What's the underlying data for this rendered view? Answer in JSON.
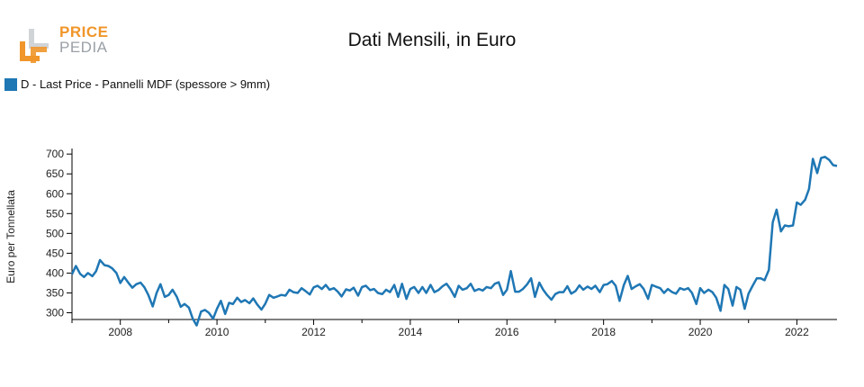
{
  "logo": {
    "line1": "PRICE",
    "line2": "PEDIA"
  },
  "colors": {
    "series": "#1f77b4",
    "logo_orange": "#f0962a",
    "logo_gray": "#9aa0a6",
    "axis": "#000000"
  },
  "chart_data": {
    "type": "line",
    "title": "Dati Mensili, in Euro",
    "ylabel": "Euro per Tonnellata",
    "xlabel": "",
    "xlim": [
      2007.0,
      2022.83
    ],
    "ylim": [
      283,
      714
    ],
    "yticks": [
      300,
      350,
      400,
      450,
      500,
      550,
      600,
      650,
      700
    ],
    "xticks": [
      2008,
      2010,
      2012,
      2014,
      2016,
      2018,
      2020,
      2022
    ],
    "grid": false,
    "legend": "top-left",
    "series": [
      {
        "name": "D - Last Price - Pannelli MDF (spessore > 9mm)",
        "color": "#1f77b4",
        "x": [
          2007.0,
          2007.08,
          2007.17,
          2007.25,
          2007.33,
          2007.42,
          2007.5,
          2007.58,
          2007.67,
          2007.75,
          2007.83,
          2007.92,
          2008.0,
          2008.08,
          2008.17,
          2008.25,
          2008.33,
          2008.42,
          2008.5,
          2008.58,
          2008.67,
          2008.75,
          2008.83,
          2008.92,
          2009.0,
          2009.08,
          2009.17,
          2009.25,
          2009.33,
          2009.42,
          2009.5,
          2009.58,
          2009.67,
          2009.75,
          2009.83,
          2009.92,
          2010.0,
          2010.08,
          2010.17,
          2010.25,
          2010.33,
          2010.42,
          2010.5,
          2010.58,
          2010.67,
          2010.75,
          2010.83,
          2010.92,
          2011.0,
          2011.08,
          2011.17,
          2011.25,
          2011.33,
          2011.42,
          2011.5,
          2011.58,
          2011.67,
          2011.75,
          2011.83,
          2011.92,
          2012.0,
          2012.08,
          2012.17,
          2012.25,
          2012.33,
          2012.42,
          2012.5,
          2012.58,
          2012.67,
          2012.75,
          2012.83,
          2012.92,
          2013.0,
          2013.08,
          2013.17,
          2013.25,
          2013.33,
          2013.42,
          2013.5,
          2013.58,
          2013.67,
          2013.75,
          2013.83,
          2013.92,
          2014.0,
          2014.08,
          2014.17,
          2014.25,
          2014.33,
          2014.42,
          2014.5,
          2014.58,
          2014.67,
          2014.75,
          2014.83,
          2014.92,
          2015.0,
          2015.08,
          2015.17,
          2015.25,
          2015.33,
          2015.42,
          2015.5,
          2015.58,
          2015.67,
          2015.75,
          2015.83,
          2015.92,
          2016.0,
          2016.08,
          2016.17,
          2016.25,
          2016.33,
          2016.42,
          2016.5,
          2016.58,
          2016.67,
          2016.75,
          2016.83,
          2016.92,
          2017.0,
          2017.08,
          2017.17,
          2017.25,
          2017.33,
          2017.42,
          2017.5,
          2017.58,
          2017.67,
          2017.75,
          2017.83,
          2017.92,
          2018.0,
          2018.08,
          2018.17,
          2018.25,
          2018.33,
          2018.42,
          2018.5,
          2018.58,
          2018.67,
          2018.75,
          2018.83,
          2018.92,
          2019.0,
          2019.08,
          2019.17,
          2019.25,
          2019.33,
          2019.42,
          2019.5,
          2019.58,
          2019.67,
          2019.75,
          2019.83,
          2019.92,
          2020.0,
          2020.08,
          2020.17,
          2020.25,
          2020.33,
          2020.42,
          2020.5,
          2020.58,
          2020.67,
          2020.75,
          2020.83,
          2020.92,
          2021.0,
          2021.08,
          2021.17,
          2021.25,
          2021.33,
          2021.42,
          2021.5,
          2021.58,
          2021.67,
          2021.75,
          2021.83,
          2021.92,
          2022.0,
          2022.08,
          2022.17,
          2022.25,
          2022.33,
          2022.42,
          2022.5,
          2022.58,
          2022.67,
          2022.75,
          2022.83
        ],
        "values": [
          397,
          418,
          398,
          390,
          400,
          392,
          405,
          433,
          420,
          418,
          412,
          400,
          375,
          390,
          375,
          363,
          372,
          376,
          364,
          345,
          316,
          350,
          372,
          340,
          345,
          358,
          340,
          315,
          322,
          313,
          285,
          268,
          303,
          307,
          300,
          285,
          310,
          330,
          297,
          325,
          322,
          338,
          327,
          332,
          324,
          336,
          321,
          308,
          323,
          345,
          338,
          341,
          345,
          343,
          358,
          352,
          350,
          362,
          355,
          346,
          364,
          368,
          360,
          370,
          358,
          362,
          353,
          341,
          359,
          356,
          363,
          343,
          365,
          368,
          357,
          360,
          350,
          347,
          358,
          352,
          370,
          340,
          373,
          335,
          360,
          365,
          350,
          365,
          350,
          370,
          352,
          357,
          367,
          373,
          360,
          340,
          368,
          358,
          362,
          373,
          355,
          360,
          356,
          365,
          362,
          373,
          377,
          345,
          358,
          405,
          353,
          353,
          360,
          372,
          387,
          340,
          376,
          358,
          345,
          333,
          347,
          352,
          352,
          367,
          348,
          355,
          369,
          358,
          366,
          360,
          368,
          352,
          370,
          372,
          380,
          368,
          330,
          370,
          393,
          360,
          367,
          372,
          360,
          335,
          370,
          366,
          362,
          350,
          360,
          352,
          348,
          362,
          358,
          362,
          350,
          322,
          362,
          350,
          358,
          352,
          338,
          305,
          370,
          360,
          318,
          365,
          358,
          310,
          348,
          367,
          387,
          387,
          382,
          408,
          528,
          560,
          505,
          520,
          518,
          520,
          578,
          572,
          585,
          612,
          688,
          652,
          690,
          693,
          685,
          672,
          670
        ]
      }
    ]
  }
}
